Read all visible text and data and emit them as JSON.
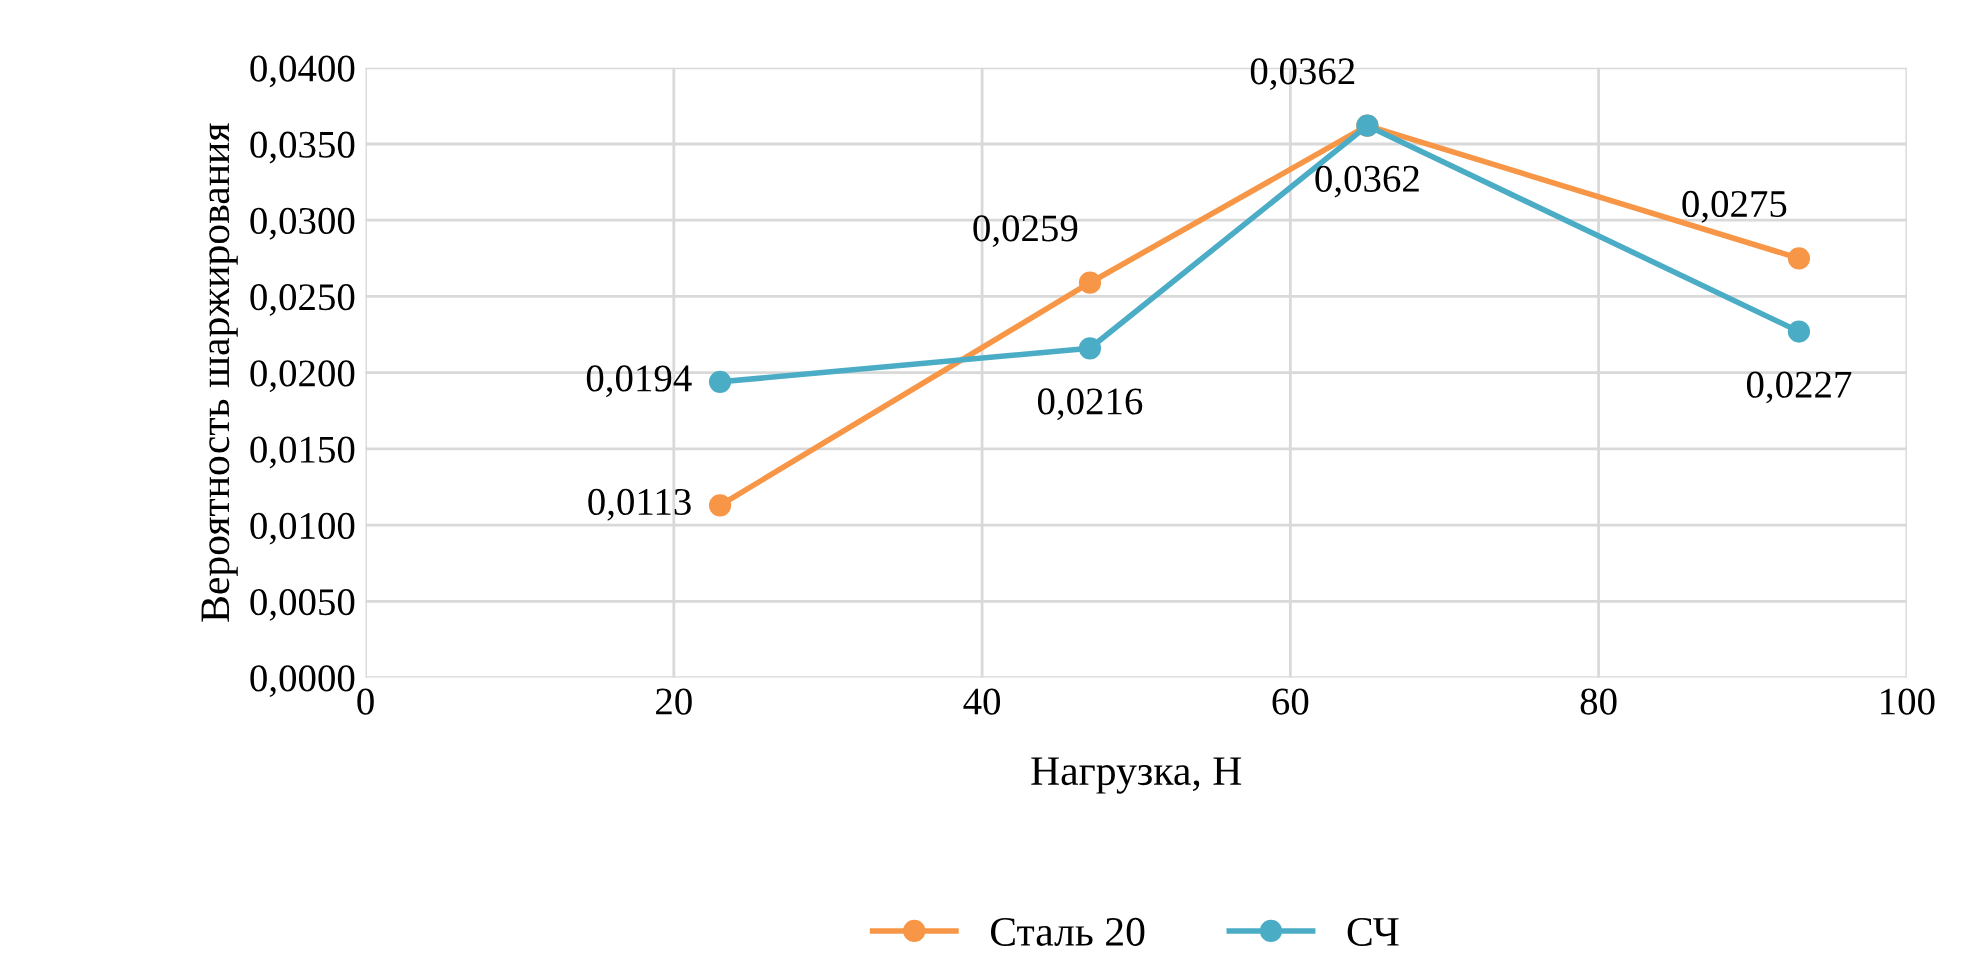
{
  "chart_data": {
    "type": "line",
    "xlabel": "Нагрузка, Н",
    "ylabel": "Вероятность шаржирования",
    "xlim": [
      0,
      100
    ],
    "xticks": [
      0,
      20,
      40,
      60,
      80,
      100
    ],
    "ylim": [
      0,
      0.04
    ],
    "yticks": [
      {
        "value": 0,
        "label": "0,0000"
      },
      {
        "value": 0.005,
        "label": "0,0050"
      },
      {
        "value": 0.01,
        "label": "0,0100"
      },
      {
        "value": 0.015,
        "label": "0,0150"
      },
      {
        "value": 0.02,
        "label": "0,0200"
      },
      {
        "value": 0.025,
        "label": "0,0250"
      },
      {
        "value": 0.03,
        "label": "0,0300"
      },
      {
        "value": 0.035,
        "label": "0,0350"
      },
      {
        "value": 0.04,
        "label": "0,0400"
      }
    ],
    "grid": true,
    "legend": "bottom",
    "marker": "circle",
    "line_style": "solid",
    "series": [
      {
        "name": "Сталь 20",
        "color": "#f79646",
        "x": [
          23,
          47,
          65,
          93
        ],
        "values": [
          0.0113,
          0.0259,
          0.0362,
          0.0275
        ],
        "value_labels": [
          "0,0113",
          "0,0259",
          "0,0362",
          "0,0275"
        ]
      },
      {
        "name": "СЧ",
        "color": "#4bacc6",
        "x": [
          23,
          47,
          65,
          93
        ],
        "values": [
          0.0194,
          0.0216,
          0.0362,
          0.0227
        ],
        "value_labels": [
          "0,0194",
          "0,0216",
          "0,0362",
          "0,0227"
        ]
      }
    ]
  }
}
